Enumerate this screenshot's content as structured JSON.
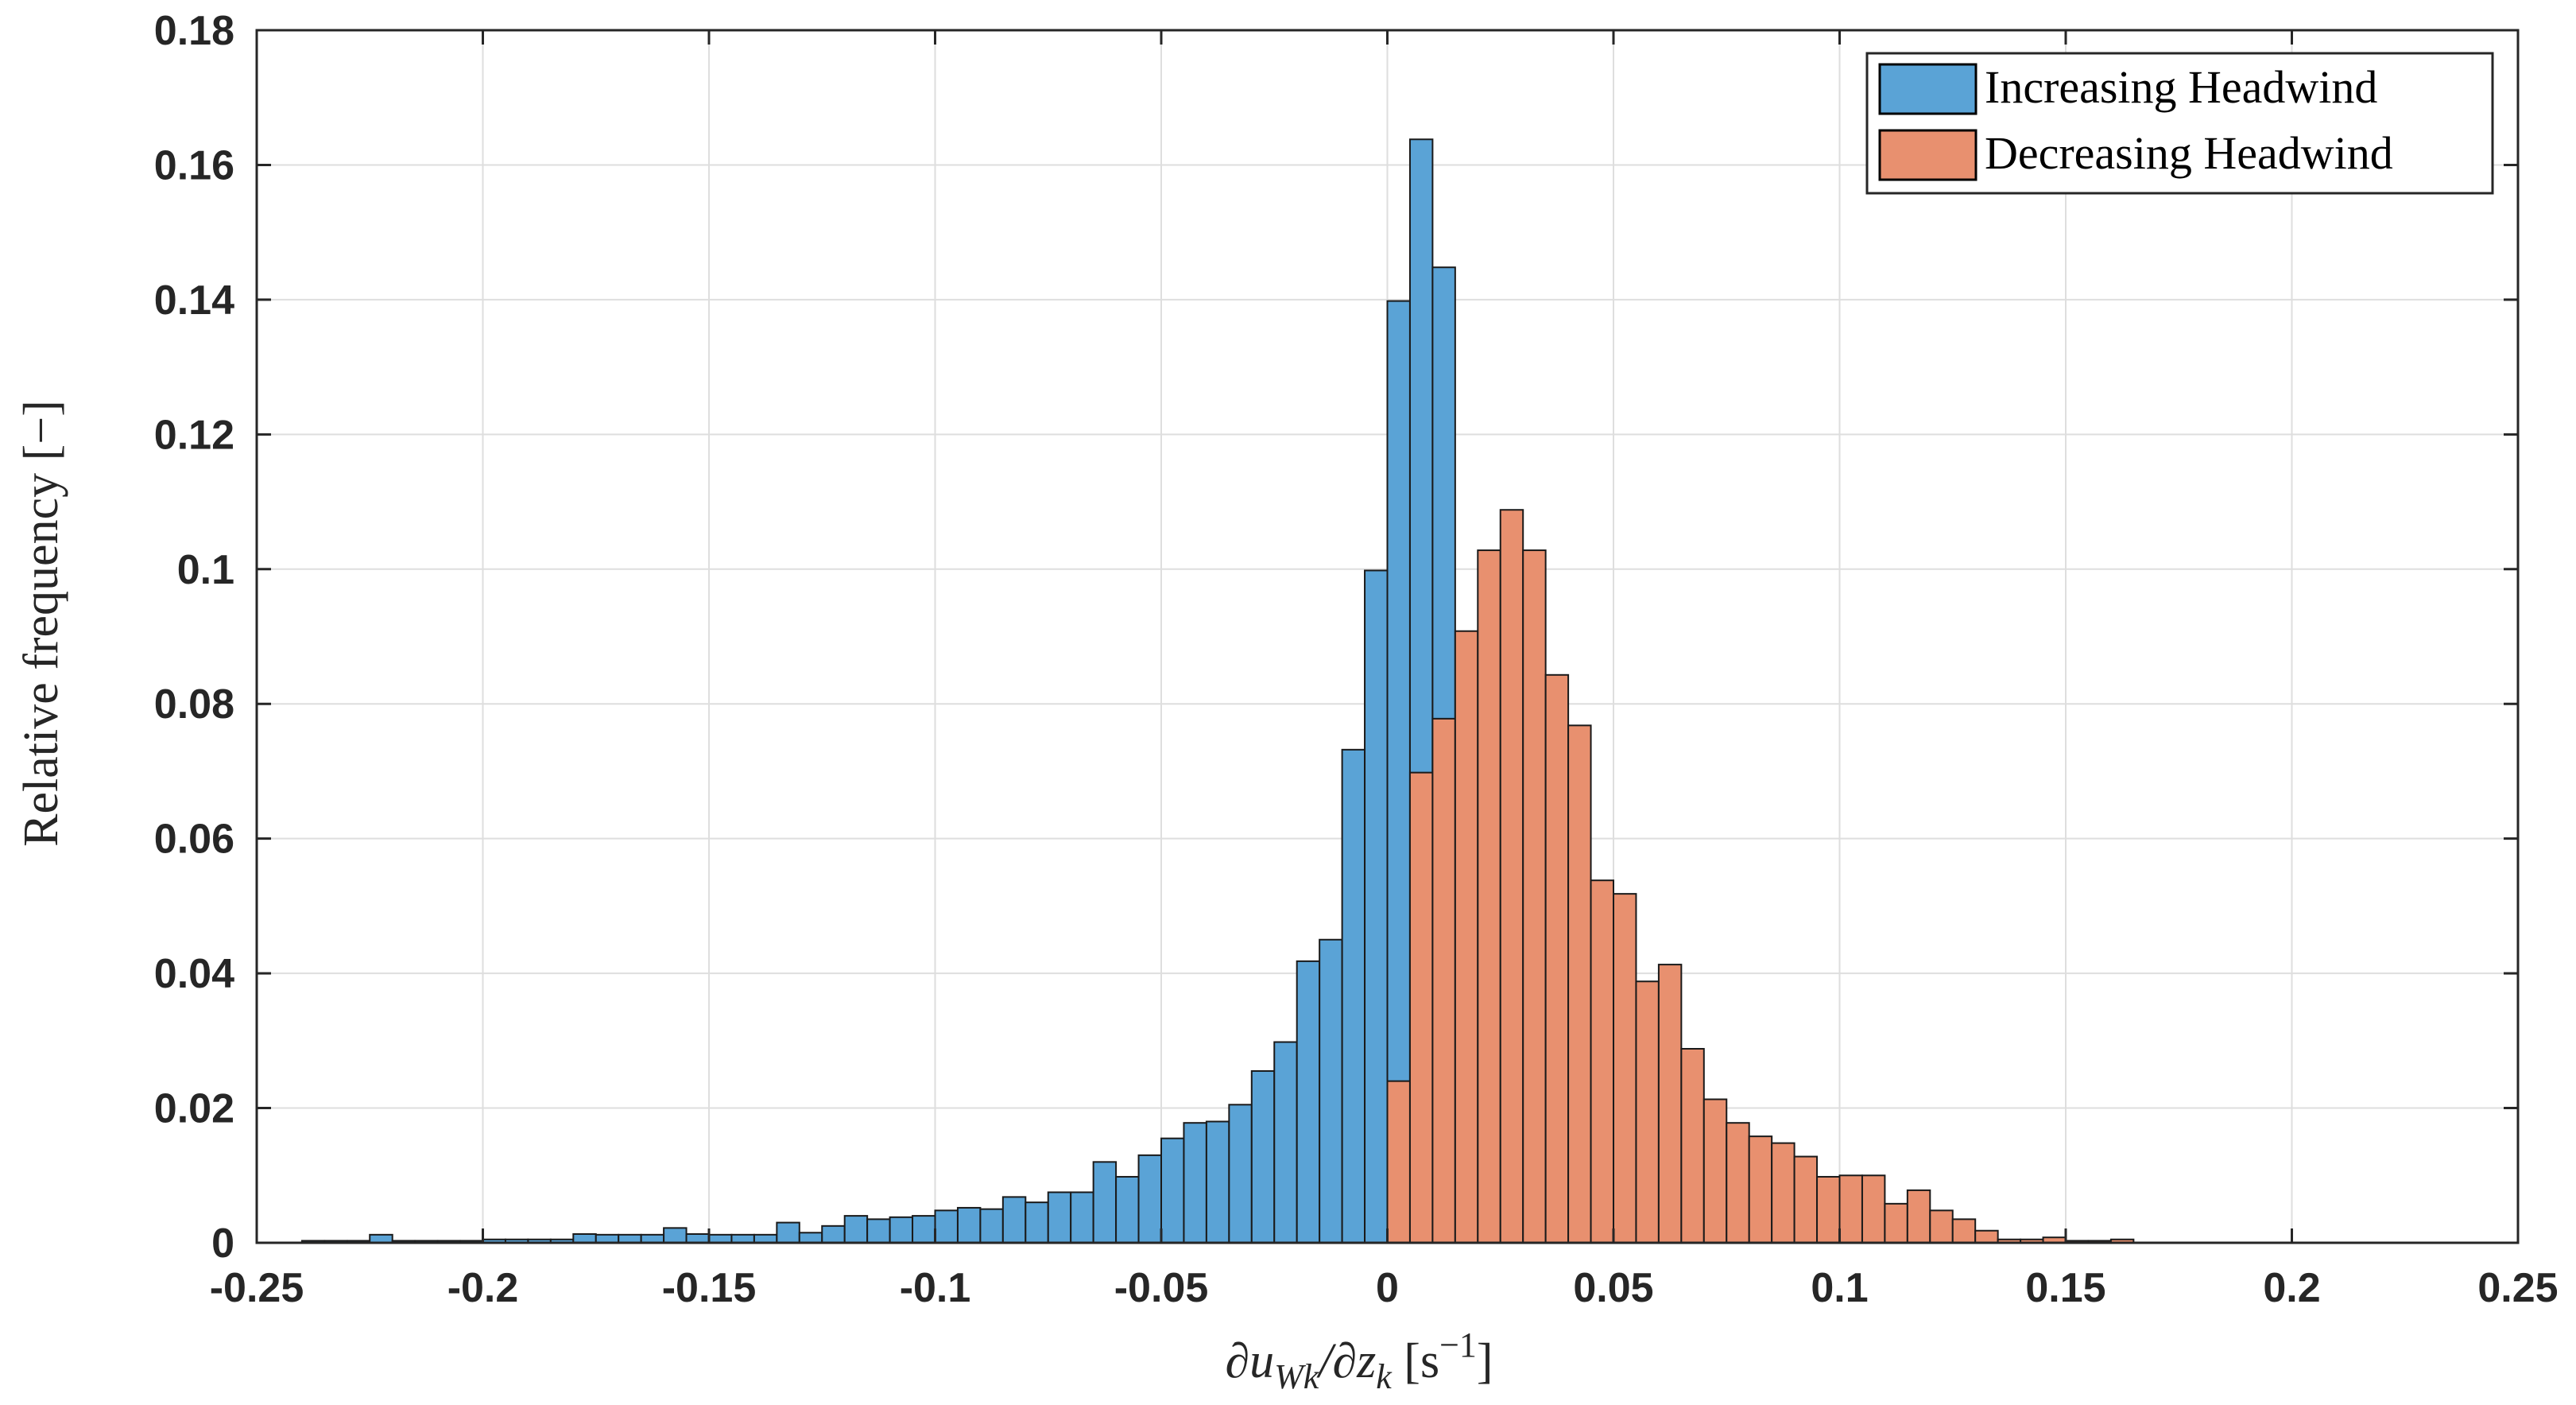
{
  "chart_data": {
    "type": "bar",
    "title": "",
    "xlabel": "∂u_Wk/∂z_k [s⁻¹]",
    "xlabel_parts": {
      "base1": "∂u",
      "sub1": "Wk",
      "mid": "/∂z",
      "sub2": "k",
      "unit_open": " [s",
      "sup": "−1",
      "unit_close": "]"
    },
    "ylabel": "Relative frequency [−]",
    "xlim": [
      -0.25,
      0.25
    ],
    "ylim": [
      0,
      0.18
    ],
    "xticks": [
      -0.25,
      -0.2,
      -0.15,
      -0.1,
      -0.05,
      0,
      0.05,
      0.1,
      0.15,
      0.2,
      0.25
    ],
    "xtick_labels": [
      "-0.25",
      "-0.2",
      "-0.15",
      "-0.1",
      "-0.05",
      "0",
      "0.05",
      "0.1",
      "0.15",
      "0.2",
      "0.25"
    ],
    "yticks": [
      0,
      0.02,
      0.04,
      0.06,
      0.08,
      0.1,
      0.12,
      0.14,
      0.16,
      0.18
    ],
    "ytick_labels": [
      "0",
      "0.02",
      "0.04",
      "0.06",
      "0.08",
      "0.1",
      "0.12",
      "0.14",
      "0.16",
      "0.18"
    ],
    "grid": true,
    "legend_position": "top-right",
    "bin_width": 0.005,
    "series": [
      {
        "name": "Increasing Headwind",
        "color": "#5aa3d6",
        "bin_start": -0.24,
        "values": [
          0.0003,
          0.0003,
          0.0003,
          0.0012,
          0.0003,
          0.0003,
          0.0003,
          0.0003,
          0.0005,
          0.0005,
          0.0005,
          0.0005,
          0.0013,
          0.0012,
          0.0012,
          0.0012,
          0.0022,
          0.0013,
          0.0012,
          0.0012,
          0.0012,
          0.003,
          0.0015,
          0.0025,
          0.004,
          0.0035,
          0.0038,
          0.004,
          0.0048,
          0.0052,
          0.005,
          0.0068,
          0.006,
          0.0075,
          0.0075,
          0.012,
          0.0098,
          0.013,
          0.0155,
          0.0178,
          0.018,
          0.0205,
          0.0255,
          0.0298,
          0.0418,
          0.045,
          0.0732,
          0.0998,
          0.1398,
          0.1638,
          0.1448,
          0.0538
        ]
      },
      {
        "name": "Decreasing Headwind",
        "color": "#e8906f",
        "bin_start": 0.0,
        "values": [
          0.024,
          0.0698,
          0.0778,
          0.0908,
          0.1028,
          0.1088,
          0.1028,
          0.0843,
          0.0768,
          0.0538,
          0.0518,
          0.0388,
          0.0413,
          0.0288,
          0.0213,
          0.0178,
          0.0158,
          0.0148,
          0.0128,
          0.0098,
          0.01,
          0.01,
          0.0058,
          0.0078,
          0.0048,
          0.0035,
          0.0018,
          0.0005,
          0.0005,
          0.0008,
          0.0003,
          0.0003,
          0.0005
        ]
      }
    ]
  }
}
